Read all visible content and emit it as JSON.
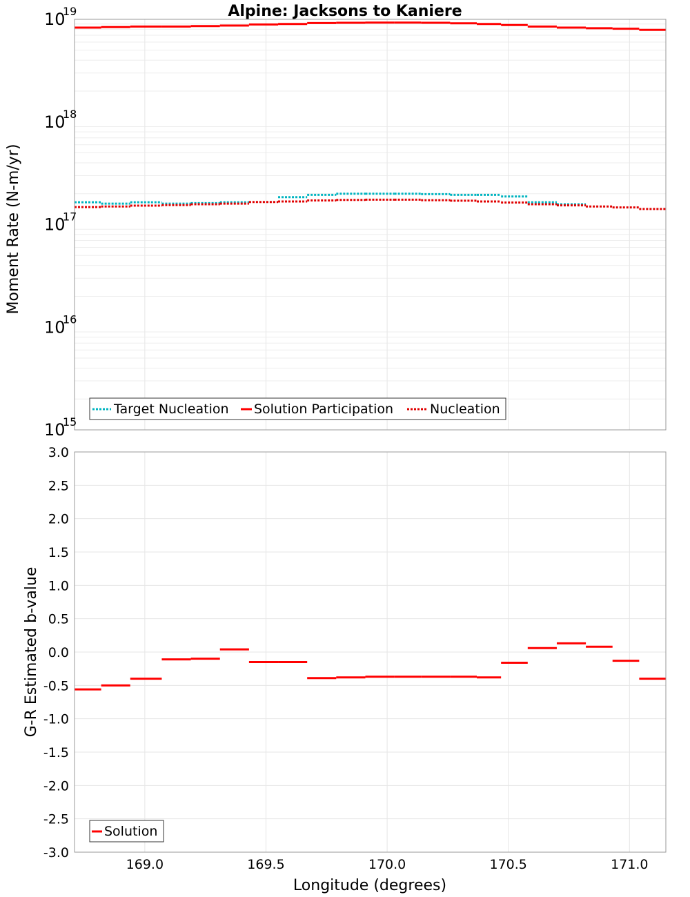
{
  "title": "Alpine: Jacksons to Kaniere",
  "colors": {
    "solution_participation": "#ff0000",
    "nucleation": "#e00000",
    "target_nucleation": "#00b4c0",
    "solution": "#ff0000",
    "grid": "#e6e6e6",
    "frame": "#999999"
  },
  "chart_data": [
    {
      "id": "moment",
      "type": "line",
      "step": true,
      "yscale": "log",
      "ylabel": "Moment Rate (N-m/yr)",
      "xlabel": "",
      "xlim": [
        168.71,
        171.15
      ],
      "ylim": [
        1000000000000000.0,
        1e+19
      ],
      "ytick_bases": [
        "10",
        "10",
        "10",
        "10",
        "10"
      ],
      "ytick_exps": [
        "15",
        "16",
        "17",
        "18",
        "19"
      ],
      "grid": true,
      "legend_position": "bottom-left",
      "x_edges": [
        168.71,
        168.82,
        168.94,
        169.07,
        169.19,
        169.31,
        169.43,
        169.55,
        169.67,
        169.79,
        169.91,
        170.03,
        170.14,
        170.26,
        170.37,
        170.47,
        170.58,
        170.7,
        170.82,
        170.93,
        171.04,
        171.15
      ],
      "series": [
        {
          "name": "Target Nucleation",
          "style": "dotted",
          "values": [
            1.65e+17,
            1.6e+17,
            1.65e+17,
            1.6e+17,
            1.62e+17,
            1.65e+17,
            null,
            1.85e+17,
            1.95e+17,
            2e+17,
            2e+17,
            2e+17,
            1.98e+17,
            1.95e+17,
            1.95e+17,
            1.88e+17,
            1.65e+17,
            1.58e+17,
            null,
            null,
            null
          ]
        },
        {
          "name": "Solution Participation",
          "style": "solid",
          "values": [
            8.3e+18,
            8.4e+18,
            8.5e+18,
            8.5e+18,
            8.6e+18,
            8.7e+18,
            8.9e+18,
            9e+18,
            9.2e+18,
            9.25e+18,
            9.3e+18,
            9.3e+18,
            9.25e+18,
            9.15e+18,
            9e+18,
            8.8e+18,
            8.5e+18,
            8.3e+18,
            8.2e+18,
            8.1e+18,
            7.9e+18
          ]
        },
        {
          "name": "Nucleation",
          "style": "dotted",
          "values": [
            1.48e+17,
            1.5e+17,
            1.53e+17,
            1.55e+17,
            1.58e+17,
            1.6e+17,
            1.66e+17,
            1.68e+17,
            1.72e+17,
            1.74e+17,
            1.75e+17,
            1.75e+17,
            1.73e+17,
            1.71e+17,
            1.68e+17,
            1.64e+17,
            1.58e+17,
            1.54e+17,
            1.5e+17,
            1.47e+17,
            1.42e+17
          ]
        }
      ]
    },
    {
      "id": "bvalue",
      "type": "line",
      "step": true,
      "yscale": "linear",
      "ylabel": "G-R Estimated b-value",
      "xlabel": "Longitude (degrees)",
      "xlim": [
        168.71,
        171.15
      ],
      "ylim": [
        -3.0,
        3.0
      ],
      "xticks": [
        169.0,
        169.5,
        170.0,
        170.5,
        171.0
      ],
      "xtick_labels": [
        "169.0",
        "169.5",
        "170.0",
        "170.5",
        "171.0"
      ],
      "yticks": [
        -3.0,
        -2.5,
        -2.0,
        -1.5,
        -1.0,
        -0.5,
        0.0,
        0.5,
        1.0,
        1.5,
        2.0,
        2.5,
        3.0
      ],
      "ytick_labels": [
        "-3.0",
        "-2.5",
        "-2.0",
        "-1.5",
        "-1.0",
        "-0.5",
        "0.0",
        "0.5",
        "1.0",
        "1.5",
        "2.0",
        "2.5",
        "3.0"
      ],
      "grid": true,
      "legend_position": "bottom-left",
      "x_edges": [
        168.71,
        168.82,
        168.94,
        169.07,
        169.19,
        169.31,
        169.43,
        169.55,
        169.67,
        169.79,
        169.91,
        170.03,
        170.14,
        170.26,
        170.37,
        170.47,
        170.58,
        170.7,
        170.82,
        170.93,
        171.04,
        171.15
      ],
      "series": [
        {
          "name": "Solution",
          "style": "solid",
          "values": [
            -0.56,
            -0.5,
            -0.4,
            -0.11,
            -0.1,
            0.04,
            -0.15,
            -0.15,
            -0.39,
            -0.38,
            -0.37,
            -0.37,
            -0.37,
            -0.37,
            -0.38,
            -0.16,
            0.06,
            0.13,
            0.08,
            -0.13,
            -0.4
          ]
        }
      ]
    }
  ]
}
